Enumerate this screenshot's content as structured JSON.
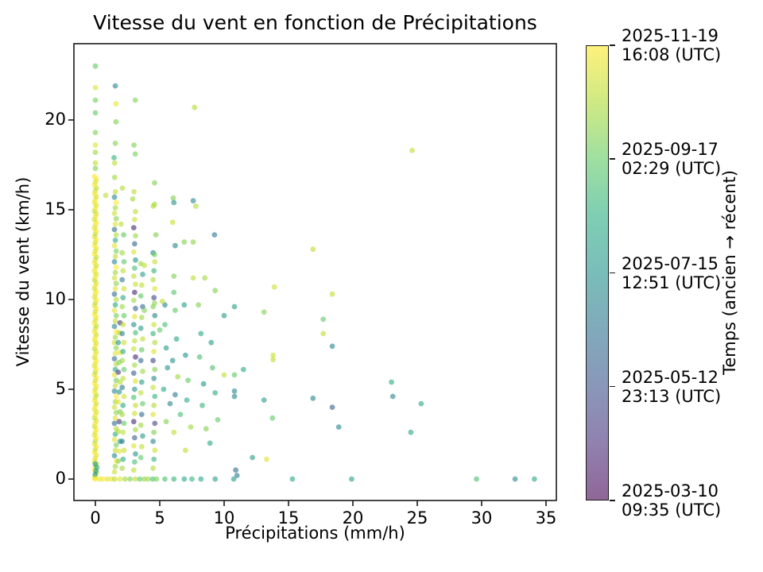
{
  "figure": {
    "background": "#ffffff",
    "frame_color": "#1a1a1a"
  },
  "chart_data": {
    "type": "scatter",
    "title": "Vitesse du vent en fonction de Précipitations",
    "xlabel": "Précipitations (mm/h)",
    "ylabel": "Vitesse du vent (km/h)",
    "xlim": [
      -1.67,
      35.8
    ],
    "ylim": [
      -1.19,
      24.25
    ],
    "x_ticks": [
      0,
      5,
      10,
      15,
      20,
      25,
      30,
      35
    ],
    "y_ticks": [
      0,
      5,
      10,
      15,
      20
    ],
    "grid": false,
    "legend": "none",
    "marker_alpha": 0.6,
    "marker_size_px": 6.8,
    "color_encodes": "time (ancien → récent)",
    "colormap": "viridis",
    "colormap_stops": [
      "#440154",
      "#472d7b",
      "#3b528b",
      "#2c728e",
      "#21918c",
      "#28ae80",
      "#5ec962",
      "#addc30",
      "#fde725"
    ],
    "colorbar": {
      "label": "Temps (ancien → récent)",
      "ticks": [
        {
          "t": 1.0,
          "lines": [
            "2025-11-19",
            "16:08 (UTC)"
          ]
        },
        {
          "t": 0.75,
          "lines": [
            "2025-09-17",
            "02:29 (UTC)"
          ]
        },
        {
          "t": 0.5,
          "lines": [
            "2025-07-15",
            "12:51 (UTC)"
          ]
        },
        {
          "t": 0.25,
          "lines": [
            "2025-05-12",
            "23:13 (UTC)"
          ]
        },
        {
          "t": 0.0,
          "lines": [
            "2025-03-10",
            "09:35 (UTC)"
          ]
        }
      ]
    },
    "points": [
      [
        0,
        23,
        0.75
      ],
      [
        0,
        21.8,
        0.95
      ],
      [
        0,
        21.1,
        0.78
      ],
      [
        0,
        20.4,
        0.75
      ],
      [
        0,
        19.3,
        0.8
      ],
      [
        0,
        18.6,
        0.95
      ],
      [
        0,
        18.2,
        0.85
      ],
      [
        0,
        17.6,
        0.9
      ],
      [
        0,
        17.3,
        0.8
      ],
      [
        0.8,
        15.8,
        0.9
      ],
      [
        1.55,
        21.9,
        0.45
      ],
      [
        1.6,
        20.9,
        0.97
      ],
      [
        1.6,
        19.9,
        0.8
      ],
      [
        1.55,
        18.7,
        0.8
      ],
      [
        1.45,
        17.9,
        0.65
      ],
      [
        1.5,
        17.6,
        0.9
      ],
      [
        1.5,
        16.8,
        0.85
      ],
      [
        2.1,
        16.2,
        0.88
      ],
      [
        2.0,
        14.2,
        0.9
      ],
      [
        2.2,
        13.6,
        0.75
      ],
      [
        3.1,
        21.1,
        0.8
      ],
      [
        3.0,
        18.6,
        0.8
      ],
      [
        3.1,
        18.1,
        0.78
      ],
      [
        3.0,
        16.0,
        0.9
      ],
      [
        2.9,
        15.6,
        0.85
      ],
      [
        7.7,
        20.7,
        0.88
      ],
      [
        4.6,
        16.5,
        0.8
      ],
      [
        4.6,
        15.3,
        0.85
      ],
      [
        4.5,
        15.2,
        0.88
      ],
      [
        4.7,
        13.6,
        0.8
      ],
      [
        4.6,
        12.5,
        0.78
      ],
      [
        4.6,
        9.8,
        0.82
      ],
      [
        3.8,
        11.9,
        0.9
      ],
      [
        3.8,
        9.4,
        0.8
      ],
      [
        5.0,
        8.3,
        0.75
      ],
      [
        5.4,
        9.7,
        0.45
      ],
      [
        5.2,
        9.9,
        0.9
      ],
      [
        5.4,
        8.6,
        0.7
      ],
      [
        5.5,
        7.3,
        0.55
      ],
      [
        5.6,
        6.2,
        0.5
      ],
      [
        5.3,
        5.0,
        0.6
      ],
      [
        5.8,
        4.2,
        0.45
      ],
      [
        5.5,
        3.2,
        0.8
      ],
      [
        6.0,
        14.3,
        0.92
      ],
      [
        6.05,
        15.65,
        0.8
      ],
      [
        6.1,
        15.4,
        0.5
      ],
      [
        7.6,
        15.5,
        0.45
      ],
      [
        6.1,
        11.3,
        0.8
      ],
      [
        6.1,
        10.4,
        0.72
      ],
      [
        6.2,
        13.0,
        0.45
      ],
      [
        6.9,
        13.2,
        0.8
      ],
      [
        7.6,
        13.2,
        0.82
      ],
      [
        6.2,
        9.4,
        0.75
      ],
      [
        6.3,
        7.8,
        0.6
      ],
      [
        6.0,
        6.6,
        0.5
      ],
      [
        6.4,
        5.7,
        0.85
      ],
      [
        6.2,
        4.7,
        0.4
      ],
      [
        6.6,
        3.6,
        0.7
      ],
      [
        6.1,
        2.6,
        0.9
      ],
      [
        6.9,
        9.7,
        0.55
      ],
      [
        7.0,
        6.9,
        0.5
      ],
      [
        7.2,
        5.5,
        0.75
      ],
      [
        7.1,
        4.4,
        0.6
      ],
      [
        7.4,
        2.9,
        0.85
      ],
      [
        7.0,
        1.6,
        0.9
      ],
      [
        7.8,
        15.2,
        0.88
      ],
      [
        7.6,
        11.2,
        0.9
      ],
      [
        8.5,
        11.2,
        0.85
      ],
      [
        8.0,
        9.7,
        0.8
      ],
      [
        8.2,
        8.1,
        0.6
      ],
      [
        8.1,
        6.8,
        0.7
      ],
      [
        8.4,
        5.3,
        0.5
      ],
      [
        8.3,
        4.1,
        0.65
      ],
      [
        8.6,
        2.8,
        0.8
      ],
      [
        9.0,
        7.6,
        0.55
      ],
      [
        9.25,
        13.6,
        0.4
      ],
      [
        9.1,
        6.2,
        0.7
      ],
      [
        9.3,
        4.8,
        0.6
      ],
      [
        9.5,
        3.3,
        0.75
      ],
      [
        9.3,
        10.5,
        0.8
      ],
      [
        8.9,
        2.0,
        0.6
      ],
      [
        10.8,
        9.6,
        0.55
      ],
      [
        10.0,
        9.1,
        0.55
      ],
      [
        13.1,
        9.3,
        0.8
      ],
      [
        13.9,
        10.7,
        0.92
      ],
      [
        18.4,
        10.3,
        0.9
      ],
      [
        17.7,
        8.9,
        0.75
      ],
      [
        17.7,
        8.1,
        0.9
      ],
      [
        18.4,
        7.4,
        0.45
      ],
      [
        13.8,
        6.9,
        0.92
      ],
      [
        13.8,
        6.65,
        0.9
      ],
      [
        11.5,
        6.1,
        0.6
      ],
      [
        10.8,
        5.8,
        0.75
      ],
      [
        10.0,
        5.8,
        0.9
      ],
      [
        10.8,
        4.9,
        0.45
      ],
      [
        10.8,
        4.6,
        0.45
      ],
      [
        13.1,
        4.4,
        0.55
      ],
      [
        16.9,
        4.5,
        0.45
      ],
      [
        18.4,
        4.0,
        0.3
      ],
      [
        23.0,
        5.4,
        0.6
      ],
      [
        23.1,
        4.6,
        0.45
      ],
      [
        13.75,
        3.4,
        0.75
      ],
      [
        16.9,
        12.8,
        0.9
      ],
      [
        24.6,
        18.3,
        0.9
      ],
      [
        25.3,
        4.2,
        0.6
      ],
      [
        24.5,
        2.6,
        0.6
      ],
      [
        13.3,
        1.1,
        0.95
      ],
      [
        12.2,
        1.2,
        0.55
      ],
      [
        18.9,
        2.9,
        0.45
      ],
      [
        10.9,
        0.5,
        0.35
      ],
      [
        11.0,
        0.2,
        0.4
      ],
      [
        0,
        0,
        1
      ],
      [
        0.35,
        0,
        0.97
      ],
      [
        0.6,
        0,
        1
      ],
      [
        0.95,
        0,
        0.95
      ],
      [
        1.25,
        0,
        0.98
      ],
      [
        1.5,
        0,
        0.9
      ],
      [
        1.9,
        0,
        0.95
      ],
      [
        2.3,
        0,
        0.85
      ],
      [
        2.7,
        0,
        0.8
      ],
      [
        3.1,
        0,
        0.9
      ],
      [
        3.45,
        0,
        0.75
      ],
      [
        3.8,
        0,
        0.82
      ],
      [
        4.1,
        0,
        0.85
      ],
      [
        4.45,
        0,
        0.7
      ],
      [
        4.75,
        0,
        0.78
      ],
      [
        5.4,
        0,
        0.7
      ],
      [
        6.1,
        0,
        0.65
      ],
      [
        6.9,
        0,
        0.6
      ],
      [
        7.5,
        0,
        0.65
      ],
      [
        8.2,
        0,
        0.6
      ],
      [
        9.3,
        0,
        0.55
      ],
      [
        10.75,
        0,
        0.55
      ],
      [
        15.3,
        0,
        0.6
      ],
      [
        19.9,
        0,
        0.55
      ],
      [
        29.6,
        0,
        0.7
      ],
      [
        32.6,
        0,
        0.45
      ],
      [
        34.1,
        0,
        0.6
      ]
    ],
    "dense_columns": [
      {
        "x": 0.0,
        "y0": 0.05,
        "y1": 17.0,
        "step": 0.16,
        "t": [
          0.97,
          1,
          0.92,
          0.99,
          0.95,
          0.89,
          1,
          0.94
        ]
      },
      {
        "x": 0.05,
        "y0": 0.25,
        "y1": 0.85,
        "step": 0.2,
        "t": [
          0.55,
          0.5,
          0.6
        ]
      },
      {
        "x": 1.55,
        "y0": 0.4,
        "y1": 16.2,
        "step": 0.3,
        "t": [
          0.92,
          0.85,
          1,
          0.45,
          0.9,
          0.78,
          0.96,
          0.6,
          0.88,
          0.35,
          0.95,
          0.82
        ]
      },
      {
        "x": 1.85,
        "y0": 1.0,
        "y1": 9.0,
        "step": 0.55,
        "t": [
          0.8,
          0.95,
          0.5,
          0.88,
          0.15
        ]
      },
      {
        "x": 2.15,
        "y0": 0.6,
        "y1": 13.0,
        "step": 0.5,
        "t": [
          0.85,
          0.6,
          0.92,
          0.4,
          0.9,
          0.75
        ]
      },
      {
        "x": 3.05,
        "y0": 0.5,
        "y1": 15.3,
        "step": 0.45,
        "t": [
          0.9,
          0.7,
          0.5,
          0.95,
          0.3,
          0.85,
          0.1,
          0.92
        ]
      },
      {
        "x": 3.6,
        "y0": 1.2,
        "y1": 12.0,
        "step": 0.6,
        "t": [
          0.75,
          0.9,
          0.55,
          0.85,
          0.35
        ]
      },
      {
        "x": 4.55,
        "y0": 0.6,
        "y1": 12.6,
        "step": 0.5,
        "t": [
          0.88,
          0.65,
          0.92,
          0.45,
          0.8,
          0.2,
          0.95
        ]
      }
    ]
  }
}
